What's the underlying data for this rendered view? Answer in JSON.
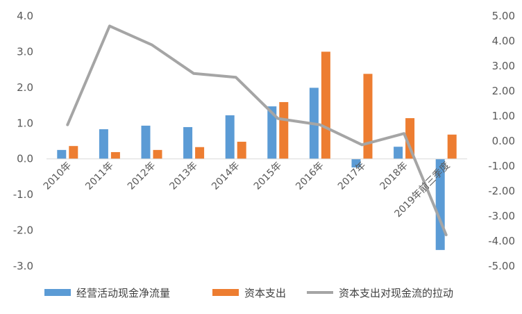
{
  "chart_data": {
    "type": "bar",
    "title": "",
    "categories": [
      "2010年",
      "2011年",
      "2012年",
      "2013年",
      "2014年",
      "2015年",
      "2016年",
      "2017年",
      "2018年",
      "2019年前三季度"
    ],
    "y_left": {
      "ticks": [
        "4.0",
        "3.0",
        "2.0",
        "1.0",
        "0.0",
        "-1.0",
        "-2.0",
        "-3.0"
      ],
      "ylim": [
        -3,
        4
      ]
    },
    "y_right": {
      "ticks": [
        "5.00",
        "4.00",
        "3.00",
        "2.00",
        "1.00",
        "0.00",
        "-1.00",
        "-2.00",
        "-3.00",
        "-4.00",
        "-5.00"
      ],
      "ylim": [
        -5,
        5
      ]
    },
    "series": [
      {
        "name": "经营活动现金净流量",
        "type": "bar",
        "axis": "left",
        "color": "#5B9BD5",
        "values": [
          0.25,
          0.83,
          0.93,
          0.89,
          1.22,
          1.47,
          1.99,
          -0.24,
          0.34,
          -2.55
        ]
      },
      {
        "name": "资本支出",
        "type": "bar",
        "axis": "left",
        "color": "#ED7D31",
        "values": [
          0.36,
          0.19,
          0.25,
          0.33,
          0.48,
          1.59,
          3.0,
          2.38,
          1.14,
          0.68
        ]
      },
      {
        "name": "资本支出对现金流的拉动",
        "type": "line",
        "axis": "right",
        "color": "#A5A5A5",
        "values": [
          0.65,
          4.6,
          3.85,
          2.7,
          2.55,
          0.9,
          0.65,
          -0.15,
          0.3,
          -3.75
        ]
      }
    ],
    "legend_position": "bottom",
    "grid": false
  }
}
